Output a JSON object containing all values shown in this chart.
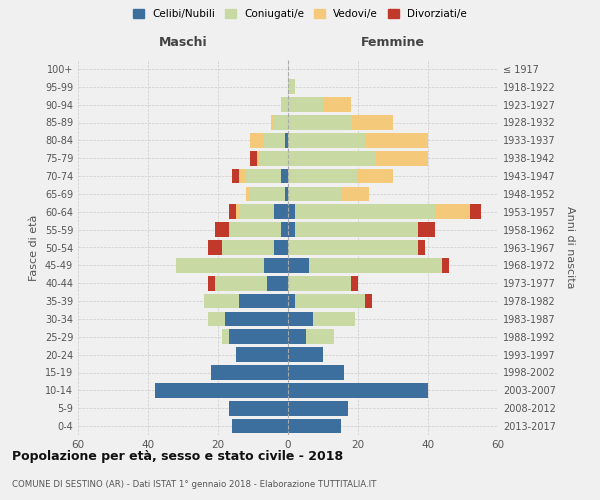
{
  "age_groups": [
    "0-4",
    "5-9",
    "10-14",
    "15-19",
    "20-24",
    "25-29",
    "30-34",
    "35-39",
    "40-44",
    "45-49",
    "50-54",
    "55-59",
    "60-64",
    "65-69",
    "70-74",
    "75-79",
    "80-84",
    "85-89",
    "90-94",
    "95-99",
    "100+"
  ],
  "birth_years": [
    "2013-2017",
    "2008-2012",
    "2003-2007",
    "1998-2002",
    "1993-1997",
    "1988-1992",
    "1983-1987",
    "1978-1982",
    "1973-1977",
    "1968-1972",
    "1963-1967",
    "1958-1962",
    "1953-1957",
    "1948-1952",
    "1943-1947",
    "1938-1942",
    "1933-1937",
    "1928-1932",
    "1923-1927",
    "1918-1922",
    "≤ 1917"
  ],
  "maschi": {
    "celibe": [
      16,
      17,
      38,
      22,
      15,
      17,
      18,
      14,
      6,
      7,
      4,
      2,
      4,
      1,
      2,
      0,
      1,
      0,
      0,
      0,
      0
    ],
    "coniugato": [
      0,
      0,
      0,
      0,
      0,
      2,
      5,
      10,
      15,
      25,
      15,
      15,
      10,
      10,
      10,
      8,
      6,
      4,
      2,
      0,
      0
    ],
    "vedovo": [
      0,
      0,
      0,
      0,
      0,
      0,
      0,
      0,
      0,
      0,
      0,
      0,
      1,
      1,
      2,
      1,
      4,
      1,
      0,
      0,
      0
    ],
    "divorziato": [
      0,
      0,
      0,
      0,
      0,
      0,
      0,
      0,
      2,
      0,
      4,
      4,
      2,
      0,
      2,
      2,
      0,
      0,
      0,
      0,
      0
    ]
  },
  "femmine": {
    "nubile": [
      15,
      17,
      40,
      16,
      10,
      5,
      7,
      2,
      0,
      6,
      0,
      2,
      2,
      0,
      0,
      0,
      0,
      0,
      0,
      0,
      0
    ],
    "coniugata": [
      0,
      0,
      0,
      0,
      0,
      8,
      12,
      20,
      18,
      38,
      37,
      35,
      40,
      15,
      20,
      25,
      22,
      18,
      10,
      2,
      0
    ],
    "vedova": [
      0,
      0,
      0,
      0,
      0,
      0,
      0,
      0,
      0,
      0,
      0,
      0,
      10,
      8,
      10,
      15,
      18,
      12,
      8,
      0,
      0
    ],
    "divorziata": [
      0,
      0,
      0,
      0,
      0,
      0,
      0,
      2,
      2,
      2,
      2,
      5,
      3,
      0,
      0,
      0,
      0,
      0,
      0,
      0,
      0
    ]
  },
  "colors": {
    "celibe": "#3c6e9e",
    "coniugato": "#c8d9a3",
    "vedovo": "#f5c97a",
    "divorziato": "#c0392b"
  },
  "title": "Popolazione per età, sesso e stato civile - 2018",
  "subtitle": "COMUNE DI SESTINO (AR) - Dati ISTAT 1° gennaio 2018 - Elaborazione TUTTITALIA.IT",
  "xlabel_left": "Maschi",
  "xlabel_right": "Femmine",
  "ylabel_left": "Fasce di età",
  "ylabel_right": "Anni di nascita",
  "xlim": 60,
  "bg_color": "#f0f0f0"
}
